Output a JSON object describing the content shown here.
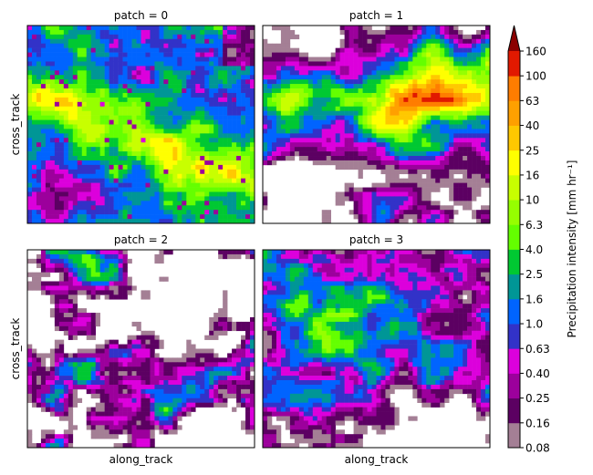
{
  "chart_data": {
    "type": "heatmap",
    "panels": [
      {
        "title": "patch = 0",
        "xlabel": "",
        "ylabel": "cross_track"
      },
      {
        "title": "patch = 1",
        "xlabel": "",
        "ylabel": ""
      },
      {
        "title": "patch = 2",
        "xlabel": "along_track",
        "ylabel": "cross_track"
      },
      {
        "title": "patch = 3",
        "xlabel": "along_track",
        "ylabel": ""
      }
    ],
    "xticks": "none",
    "yticks": "none",
    "colorbar": {
      "label": "Precipitation intensity [mm hr⁻¹]",
      "ticks": [
        "0.08",
        "0.16",
        "0.25",
        "0.40",
        "0.63",
        "1.0",
        "1.6",
        "2.5",
        "4.0",
        "6.3",
        "10",
        "16",
        "25",
        "40",
        "63",
        "100",
        "160"
      ],
      "colors": [
        "#a47f95",
        "#5c0062",
        "#9c009c",
        "#dc00dc",
        "#3232c8",
        "#0064ff",
        "#009696",
        "#00c832",
        "#64ff00",
        "#96ff00",
        "#c8ff00",
        "#ffff00",
        "#ffc800",
        "#ffa000",
        "#ff7d00",
        "#e11900"
      ],
      "extend_max_color": "#8b0000"
    },
    "missing_value_color": "#ffffff"
  }
}
